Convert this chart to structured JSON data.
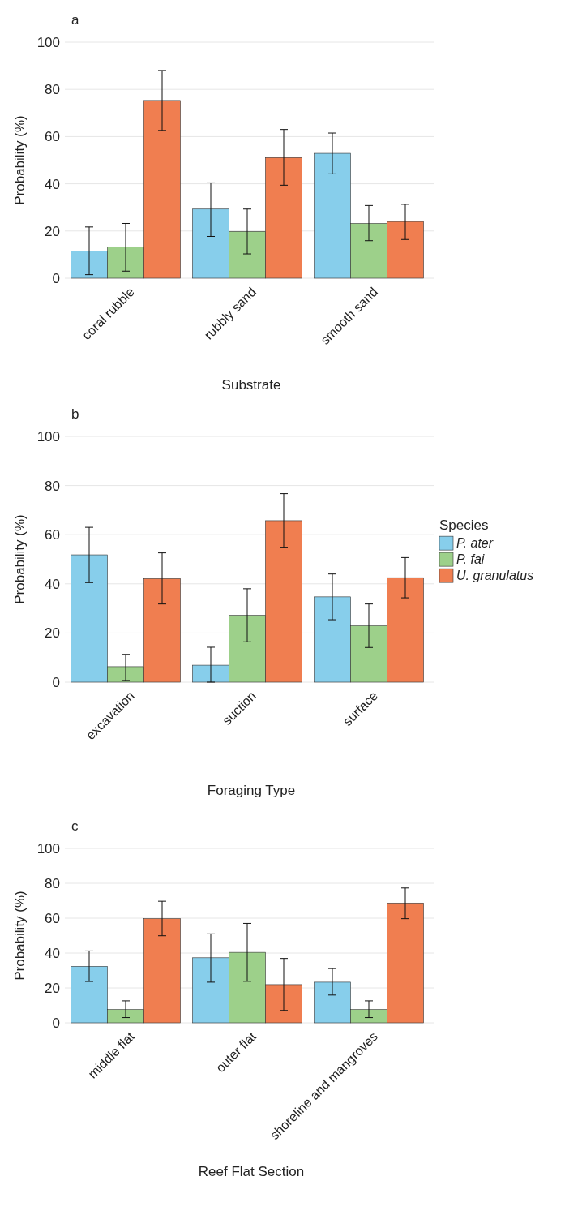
{
  "chart_data": [
    {
      "type": "bar",
      "title": "a",
      "xlabel": "Substrate",
      "ylabel": "Probability (%)",
      "categories": [
        "coral rubble",
        "rubbly sand",
        "smooth sand"
      ],
      "ylim": [
        0,
        100
      ],
      "yticks": [
        0,
        20,
        40,
        60,
        80,
        100
      ],
      "grid": "y",
      "legend": false,
      "series": [
        {
          "color": "#87ceeb",
          "values": [
            11.5,
            29.3,
            52.9
          ],
          "errors": [
            [
              1.5,
              21.7
            ],
            [
              17.7,
              40.4
            ],
            [
              44.2,
              61.5
            ]
          ]
        },
        {
          "color": "#9dd08a",
          "values": [
            13.3,
            19.8,
            23.2
          ],
          "errors": [
            [
              3,
              23.2
            ],
            [
              10.3,
              29.3
            ],
            [
              15.9,
              30.8
            ]
          ]
        },
        {
          "color": "#f07e50",
          "values": [
            75.3,
            51.1,
            24
          ],
          "errors": [
            [
              62.6,
              88
            ],
            [
              39.4,
              63
            ],
            [
              16.4,
              31.3
            ]
          ]
        }
      ]
    },
    {
      "type": "bar",
      "title": "b",
      "xlabel": "Foraging Type",
      "ylabel": "Probability (%)",
      "legend_title": "Species",
      "categories": [
        "excavation",
        "suction",
        "surface"
      ],
      "ylim": [
        0,
        100
      ],
      "yticks": [
        0,
        20,
        40,
        60,
        80,
        100
      ],
      "grid": "y",
      "legend": "right",
      "series": [
        {
          "name": "P. ater",
          "color": "#87ceeb",
          "values": [
            51.8,
            6.9,
            34.7
          ],
          "errors": [
            [
              40.5,
              63
            ],
            [
              0,
              14.2
            ],
            [
              25.4,
              44
            ]
          ]
        },
        {
          "name": "P. fai",
          "color": "#9dd08a",
          "values": [
            6.3,
            27.2,
            22.9
          ],
          "errors": [
            [
              0.7,
              11.3
            ],
            [
              16.4,
              38
            ],
            [
              14.1,
              31.8
            ]
          ]
        },
        {
          "name": "U. granulatus",
          "color": "#f07e50",
          "values": [
            42.1,
            65.7,
            42.5
          ],
          "errors": [
            [
              31.8,
              52.6
            ],
            [
              54.9,
              76.7
            ],
            [
              34.3,
              50.7
            ]
          ]
        }
      ]
    },
    {
      "type": "bar",
      "title": "c",
      "xlabel": "Reef Flat Section",
      "ylabel": "Probability (%)",
      "categories": [
        "middle flat",
        "outer flat",
        "shoreline and mangroves"
      ],
      "ylim": [
        0,
        100
      ],
      "yticks": [
        0,
        20,
        40,
        60,
        80,
        100
      ],
      "grid": "y",
      "legend": false,
      "series": [
        {
          "color": "#87ceeb",
          "values": [
            32.4,
            37.3,
            23.3
          ],
          "errors": [
            [
              23.7,
              41.2
            ],
            [
              23.3,
              51
            ],
            [
              15.9,
              31.1
            ]
          ]
        },
        {
          "color": "#9dd08a",
          "values": [
            7.6,
            40.4,
            7.6
          ],
          "errors": [
            [
              3,
              12.6
            ],
            [
              23.8,
              57
            ],
            [
              3,
              12.6
            ]
          ]
        },
        {
          "color": "#f07e50",
          "values": [
            59.7,
            21.9,
            68.7
          ],
          "errors": [
            [
              49.9,
              69.7
            ],
            [
              7.1,
              36.9
            ],
            [
              59.7,
              77.3
            ]
          ]
        }
      ]
    }
  ]
}
